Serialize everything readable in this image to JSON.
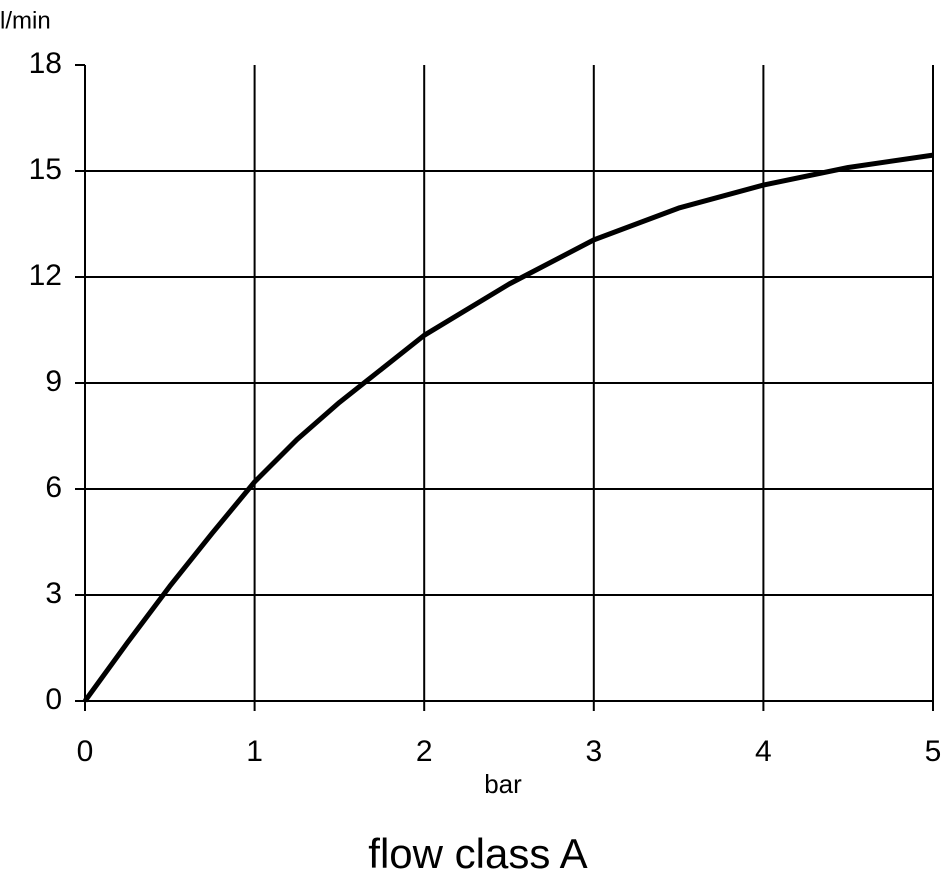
{
  "chart_data": {
    "type": "line",
    "title": "flow class A",
    "x_label": "bar",
    "y_label": "l/min",
    "x": [
      0,
      0.25,
      0.5,
      0.75,
      1,
      1.25,
      1.5,
      1.75,
      2,
      2.5,
      3,
      3.5,
      4,
      4.5,
      5
    ],
    "series": [
      {
        "name": "flow class A",
        "color": "#000000",
        "values": [
          0,
          1.65,
          3.25,
          4.75,
          6.2,
          7.4,
          8.45,
          9.4,
          10.35,
          11.8,
          13.05,
          13.95,
          14.6,
          15.1,
          15.45
        ]
      }
    ],
    "xlim": [
      0,
      5
    ],
    "ylim": [
      0,
      18
    ],
    "xticks": [
      0,
      1,
      2,
      3,
      4,
      5
    ],
    "yticks": [
      0,
      3,
      6,
      9,
      12,
      15,
      18
    ],
    "grid": true
  }
}
